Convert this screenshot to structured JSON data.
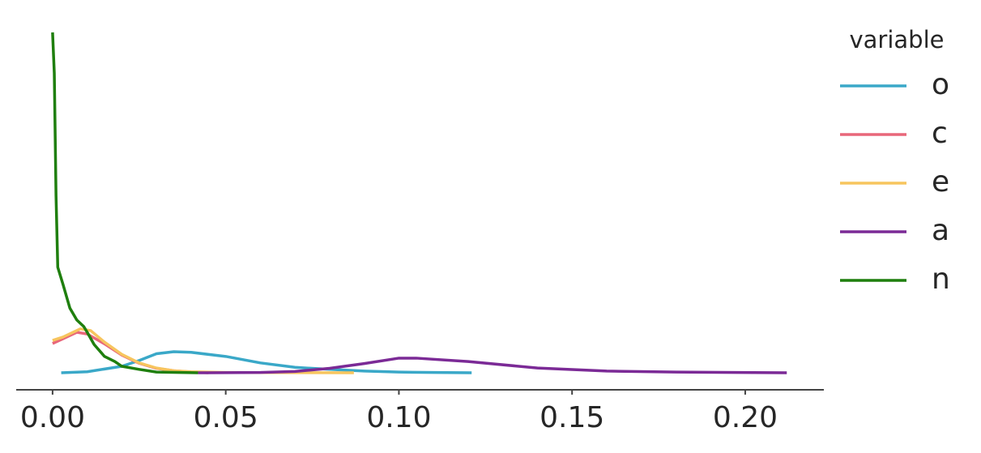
{
  "chart_data": {
    "type": "line",
    "legend_title": "variable",
    "legend_position": "right",
    "xlim": [
      -0.0105,
      0.2227
    ],
    "ylim": [
      -5,
      105
    ],
    "xticks": [
      {
        "value": 0,
        "label": "0.00"
      },
      {
        "value": 0.05,
        "label": "0.05"
      },
      {
        "value": 0.1,
        "label": "0.10"
      },
      {
        "value": 0.15,
        "label": "0.15"
      },
      {
        "value": 0.2,
        "label": "0.20"
      }
    ],
    "series": [
      {
        "name": "o",
        "color": "#3aa8c8",
        "x": [
          0.0025,
          0.01,
          0.02,
          0.025,
          0.03,
          0.035,
          0.04,
          0.05,
          0.06,
          0.07,
          0.08,
          0.09,
          0.1,
          0.11,
          0.121
        ],
        "values": [
          0,
          0.3,
          1.9,
          3.6,
          5.6,
          6.2,
          6.0,
          4.8,
          2.9,
          1.6,
          1.0,
          0.5,
          0.2,
          0.1,
          0
        ]
      },
      {
        "name": "c",
        "color": "#e8677a",
        "x": [
          0,
          0.003,
          0.007,
          0.01,
          0.015,
          0.02,
          0.025,
          0.03,
          0.035,
          0.04,
          0.045
        ],
        "values": [
          8.6,
          10,
          11.9,
          11.4,
          8.5,
          5.2,
          2.8,
          1.3,
          0.6,
          0.2,
          0
        ]
      },
      {
        "name": "e",
        "color": "#f7c55e",
        "x": [
          0,
          0.003,
          0.008,
          0.011,
          0.015,
          0.02,
          0.025,
          0.03,
          0.035,
          0.04,
          0.05,
          0.06,
          0.087
        ],
        "values": [
          9.5,
          10.5,
          12.9,
          12.4,
          9,
          5.4,
          2.9,
          1.4,
          0.6,
          0.3,
          0.1,
          0.05,
          0
        ]
      },
      {
        "name": "a",
        "color": "#7b2a96",
        "x": [
          0.042,
          0.06,
          0.07,
          0.08,
          0.09,
          0.1,
          0.105,
          0.12,
          0.14,
          0.16,
          0.18,
          0.212
        ],
        "values": [
          0,
          0.1,
          0.4,
          1.3,
          2.7,
          4.3,
          4.3,
          3.3,
          1.4,
          0.5,
          0.2,
          0
        ]
      },
      {
        "name": "n",
        "color": "#1f7f0e",
        "x": [
          0,
          0.0005,
          0.001,
          0.0015,
          0.003,
          0.005,
          0.007,
          0.009,
          0.01,
          0.012,
          0.015,
          0.018,
          0.02,
          0.025,
          0.03,
          0.042
        ],
        "values": [
          100,
          88,
          52,
          31,
          26,
          19,
          15.5,
          13.6,
          11.9,
          8.3,
          4.8,
          3.3,
          1.9,
          1,
          0.2,
          0
        ]
      }
    ]
  }
}
